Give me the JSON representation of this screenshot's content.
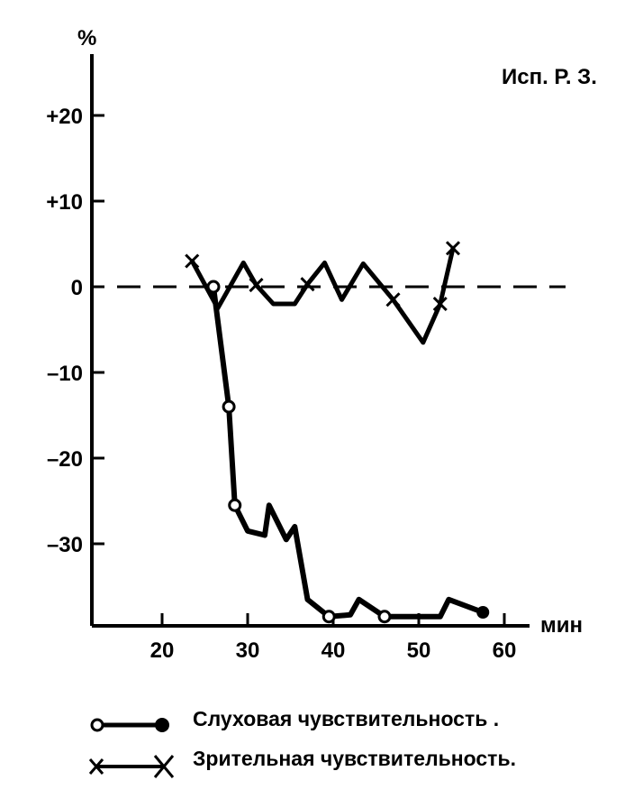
{
  "subject_label": "Исп. Р. З.",
  "chart_data": {
    "type": "line",
    "title": "",
    "xlabel": "мин",
    "ylabel": "%",
    "xlim": [
      12,
      62
    ],
    "ylim": [
      -40,
      28
    ],
    "x_ticks": [
      20,
      30,
      40,
      50,
      60
    ],
    "x_tick_labels": [
      "20",
      "30",
      "40",
      "50",
      "60"
    ],
    "y_ticks": [
      20,
      10,
      0,
      -10,
      -20,
      -30
    ],
    "y_tick_labels": [
      "+20",
      "+10",
      "0",
      "–10",
      "–20",
      "–30"
    ],
    "reference_line": {
      "y": 0,
      "style": "dashed"
    },
    "grid": false,
    "legend_position": "bottom",
    "series": [
      {
        "name": "Слуховая чувствительность .",
        "marker": "circle",
        "x": [
          26,
          27.8,
          28.5,
          30,
          32,
          32.5,
          34.5,
          35.5,
          37,
          39.5,
          42,
          43,
          46,
          50,
          52.5,
          53.5,
          57.5
        ],
        "y": [
          0,
          -14,
          -25.5,
          -28.5,
          -29,
          -25.5,
          -29.5,
          -28,
          -36.5,
          -38.5,
          -38.3,
          -36.5,
          -38.5,
          -38.5,
          -38.5,
          -36.5,
          -38
        ],
        "marker_indices": [
          0,
          1,
          2,
          9,
          12,
          16
        ]
      },
      {
        "name": "Зрительная чувствительность.",
        "marker": "x",
        "x": [
          23.5,
          26.5,
          29.5,
          31,
          33,
          35.5,
          37,
          39,
          41,
          43.5,
          47,
          50.5,
          52.5,
          54
        ],
        "y": [
          3,
          -2.5,
          2.8,
          0.2,
          -2,
          -2,
          0.3,
          2.8,
          -1.5,
          2.7,
          -1.5,
          -6.5,
          -2,
          4.5
        ],
        "marker_indices": [
          0,
          3,
          6,
          10,
          12,
          13
        ]
      }
    ]
  }
}
